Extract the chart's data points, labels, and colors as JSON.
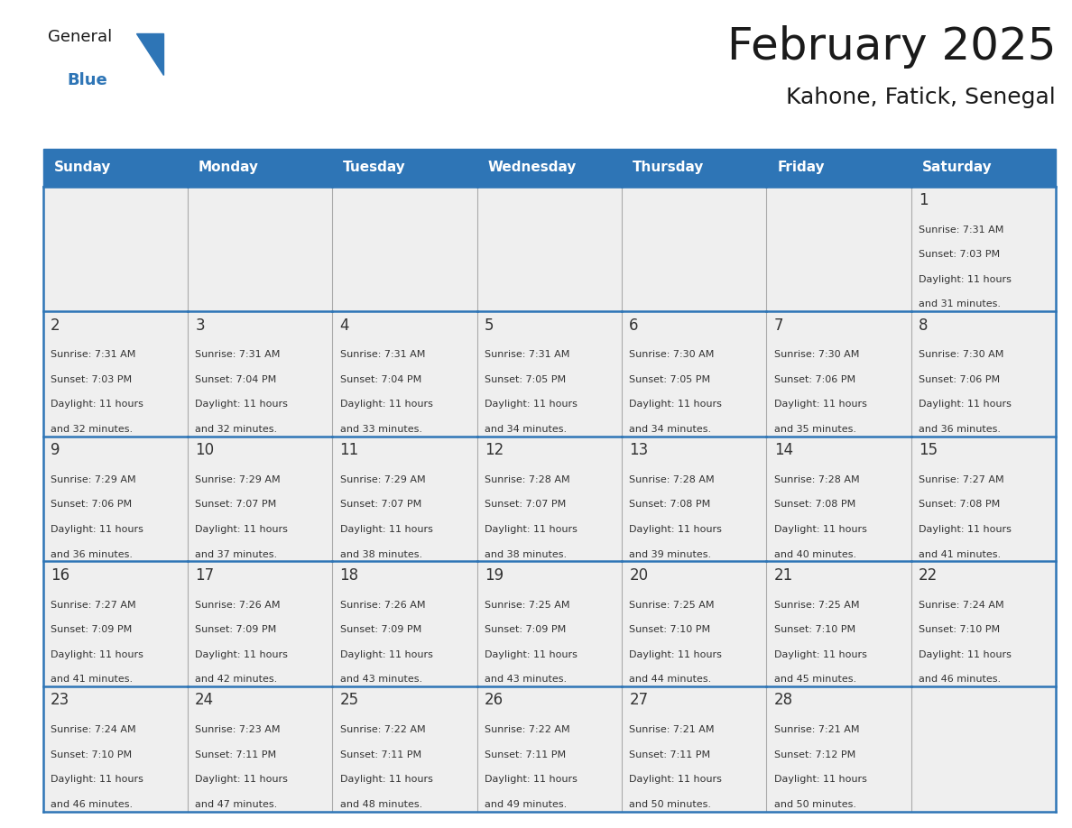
{
  "title": "February 2025",
  "subtitle": "Kahone, Fatick, Senegal",
  "header_color": "#2E75B6",
  "header_text_color": "#FFFFFF",
  "cell_bg_color": "#EFEFEF",
  "border_color": "#2E75B6",
  "grid_color": "#AAAAAA",
  "days_of_week": [
    "Sunday",
    "Monday",
    "Tuesday",
    "Wednesday",
    "Thursday",
    "Friday",
    "Saturday"
  ],
  "title_color": "#1A1A1A",
  "subtitle_color": "#1A1A1A",
  "cell_text_color": "#333333",
  "day_num_color": "#333333",
  "logo_general_color": "#1A1A1A",
  "logo_blue_color": "#2E75B6",
  "logo_triangle_color": "#2E75B6",
  "calendar_data": [
    [
      null,
      null,
      null,
      null,
      null,
      null,
      {
        "day": "1",
        "sunrise": "7:31 AM",
        "sunset": "7:03 PM",
        "daylight": "11 hours",
        "daylight2": "and 31 minutes."
      }
    ],
    [
      {
        "day": "2",
        "sunrise": "7:31 AM",
        "sunset": "7:03 PM",
        "daylight": "11 hours",
        "daylight2": "and 32 minutes."
      },
      {
        "day": "3",
        "sunrise": "7:31 AM",
        "sunset": "7:04 PM",
        "daylight": "11 hours",
        "daylight2": "and 32 minutes."
      },
      {
        "day": "4",
        "sunrise": "7:31 AM",
        "sunset": "7:04 PM",
        "daylight": "11 hours",
        "daylight2": "and 33 minutes."
      },
      {
        "day": "5",
        "sunrise": "7:31 AM",
        "sunset": "7:05 PM",
        "daylight": "11 hours",
        "daylight2": "and 34 minutes."
      },
      {
        "day": "6",
        "sunrise": "7:30 AM",
        "sunset": "7:05 PM",
        "daylight": "11 hours",
        "daylight2": "and 34 minutes."
      },
      {
        "day": "7",
        "sunrise": "7:30 AM",
        "sunset": "7:06 PM",
        "daylight": "11 hours",
        "daylight2": "and 35 minutes."
      },
      {
        "day": "8",
        "sunrise": "7:30 AM",
        "sunset": "7:06 PM",
        "daylight": "11 hours",
        "daylight2": "and 36 minutes."
      }
    ],
    [
      {
        "day": "9",
        "sunrise": "7:29 AM",
        "sunset": "7:06 PM",
        "daylight": "11 hours",
        "daylight2": "and 36 minutes."
      },
      {
        "day": "10",
        "sunrise": "7:29 AM",
        "sunset": "7:07 PM",
        "daylight": "11 hours",
        "daylight2": "and 37 minutes."
      },
      {
        "day": "11",
        "sunrise": "7:29 AM",
        "sunset": "7:07 PM",
        "daylight": "11 hours",
        "daylight2": "and 38 minutes."
      },
      {
        "day": "12",
        "sunrise": "7:28 AM",
        "sunset": "7:07 PM",
        "daylight": "11 hours",
        "daylight2": "and 38 minutes."
      },
      {
        "day": "13",
        "sunrise": "7:28 AM",
        "sunset": "7:08 PM",
        "daylight": "11 hours",
        "daylight2": "and 39 minutes."
      },
      {
        "day": "14",
        "sunrise": "7:28 AM",
        "sunset": "7:08 PM",
        "daylight": "11 hours",
        "daylight2": "and 40 minutes."
      },
      {
        "day": "15",
        "sunrise": "7:27 AM",
        "sunset": "7:08 PM",
        "daylight": "11 hours",
        "daylight2": "and 41 minutes."
      }
    ],
    [
      {
        "day": "16",
        "sunrise": "7:27 AM",
        "sunset": "7:09 PM",
        "daylight": "11 hours",
        "daylight2": "and 41 minutes."
      },
      {
        "day": "17",
        "sunrise": "7:26 AM",
        "sunset": "7:09 PM",
        "daylight": "11 hours",
        "daylight2": "and 42 minutes."
      },
      {
        "day": "18",
        "sunrise": "7:26 AM",
        "sunset": "7:09 PM",
        "daylight": "11 hours",
        "daylight2": "and 43 minutes."
      },
      {
        "day": "19",
        "sunrise": "7:25 AM",
        "sunset": "7:09 PM",
        "daylight": "11 hours",
        "daylight2": "and 43 minutes."
      },
      {
        "day": "20",
        "sunrise": "7:25 AM",
        "sunset": "7:10 PM",
        "daylight": "11 hours",
        "daylight2": "and 44 minutes."
      },
      {
        "day": "21",
        "sunrise": "7:25 AM",
        "sunset": "7:10 PM",
        "daylight": "11 hours",
        "daylight2": "and 45 minutes."
      },
      {
        "day": "22",
        "sunrise": "7:24 AM",
        "sunset": "7:10 PM",
        "daylight": "11 hours",
        "daylight2": "and 46 minutes."
      }
    ],
    [
      {
        "day": "23",
        "sunrise": "7:24 AM",
        "sunset": "7:10 PM",
        "daylight": "11 hours",
        "daylight2": "and 46 minutes."
      },
      {
        "day": "24",
        "sunrise": "7:23 AM",
        "sunset": "7:11 PM",
        "daylight": "11 hours",
        "daylight2": "and 47 minutes."
      },
      {
        "day": "25",
        "sunrise": "7:22 AM",
        "sunset": "7:11 PM",
        "daylight": "11 hours",
        "daylight2": "and 48 minutes."
      },
      {
        "day": "26",
        "sunrise": "7:22 AM",
        "sunset": "7:11 PM",
        "daylight": "11 hours",
        "daylight2": "and 49 minutes."
      },
      {
        "day": "27",
        "sunrise": "7:21 AM",
        "sunset": "7:11 PM",
        "daylight": "11 hours",
        "daylight2": "and 50 minutes."
      },
      {
        "day": "28",
        "sunrise": "7:21 AM",
        "sunset": "7:12 PM",
        "daylight": "11 hours",
        "daylight2": "and 50 minutes."
      },
      null
    ]
  ]
}
